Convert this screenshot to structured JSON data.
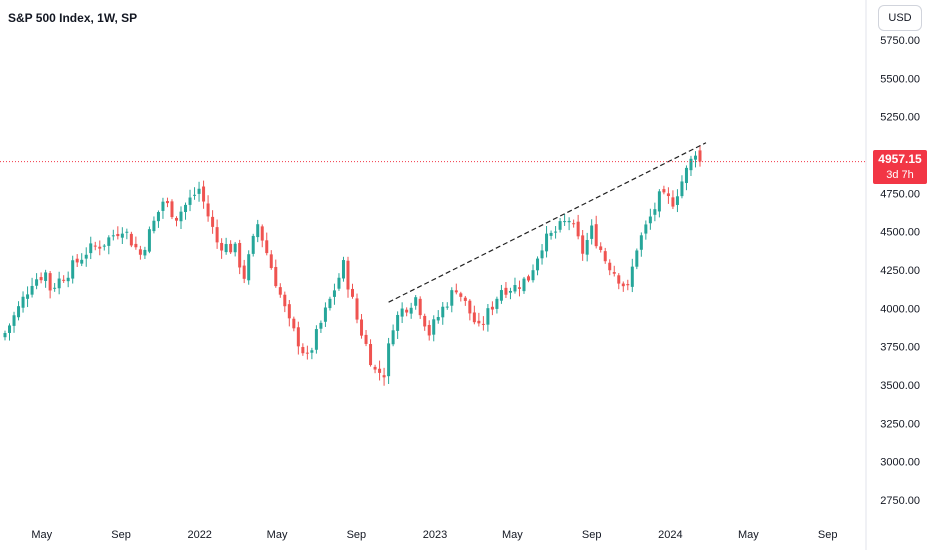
{
  "header": {
    "title": "S&P 500 Index, 1W, SP"
  },
  "currency_button": {
    "label": "USD"
  },
  "last_price": {
    "price": "4957.15",
    "countdown": "3d 7h"
  },
  "colors": {
    "up": "#26a69a",
    "down": "#ef5350",
    "price_line": "#f23645",
    "axis_text": "#131722",
    "trendline": "#222222"
  },
  "chart_data": {
    "type": "candlestick",
    "title": "S&P 500 Index, 1W, SP",
    "y_ticks": [
      "2750.00",
      "3000.00",
      "3250.00",
      "3500.00",
      "3750.00",
      "4000.00",
      "4250.00",
      "4500.00",
      "4750.00",
      "5000.00",
      "5250.00",
      "5500.00",
      "5750.00"
    ],
    "x_ticks": [
      "May",
      "Sep",
      "2022",
      "May",
      "Sep",
      "2023",
      "May",
      "Sep",
      "2024",
      "May",
      "Sep"
    ],
    "ylim": [
      2600,
      5800
    ],
    "grid": false,
    "last_close": 4957.15,
    "trendline": {
      "from": [
        "2022-10-21",
        4040
      ],
      "to": [
        "2024-02-16",
        5080
      ],
      "style": "dashed"
    },
    "series": [
      {
        "waypoints": [
          [
            "2021-03-05",
            3840
          ],
          [
            "2021-03-26",
            4000
          ],
          [
            "2021-04-16",
            4180
          ],
          [
            "2021-05-07",
            4230
          ],
          [
            "2021-05-14",
            4130
          ],
          [
            "2021-06-11",
            4240
          ],
          [
            "2021-07-09",
            4370
          ],
          [
            "2021-08-06",
            4430
          ],
          [
            "2021-09-03",
            4530
          ],
          [
            "2021-10-01",
            4350
          ],
          [
            "2021-11-05",
            4700
          ],
          [
            "2021-11-26",
            4600
          ],
          [
            "2021-12-31",
            4780
          ],
          [
            "2022-01-28",
            4430
          ],
          [
            "2022-02-25",
            4380
          ],
          [
            "2022-03-11",
            4210
          ],
          [
            "2022-04-01",
            4550
          ],
          [
            "2022-05-20",
            3900
          ],
          [
            "2022-06-17",
            3670
          ],
          [
            "2022-07-08",
            3900
          ],
          [
            "2022-08-12",
            4280
          ],
          [
            "2022-09-02",
            3930
          ],
          [
            "2022-09-30",
            3590
          ],
          [
            "2022-10-14",
            3580
          ],
          [
            "2022-10-28",
            3900
          ],
          [
            "2022-11-11",
            3990
          ],
          [
            "2022-12-02",
            4070
          ],
          [
            "2022-12-23",
            3840
          ],
          [
            "2023-01-13",
            4000
          ],
          [
            "2023-02-03",
            4140
          ],
          [
            "2023-03-10",
            3860
          ],
          [
            "2023-04-14",
            4130
          ],
          [
            "2023-05-05",
            4140
          ],
          [
            "2023-05-26",
            4200
          ],
          [
            "2023-06-16",
            4420
          ],
          [
            "2023-07-28",
            4580
          ],
          [
            "2023-08-18",
            4370
          ],
          [
            "2023-09-01",
            4510
          ],
          [
            "2023-09-22",
            4320
          ],
          [
            "2023-10-27",
            4120
          ],
          [
            "2023-11-10",
            4400
          ],
          [
            "2023-12-15",
            4720
          ],
          [
            "2024-01-05",
            4700
          ],
          [
            "2024-02-02",
            4960
          ],
          [
            "2024-02-09",
            5030
          ],
          [
            "2024-02-16",
            4957
          ]
        ],
        "first_open": 3810
      }
    ]
  }
}
